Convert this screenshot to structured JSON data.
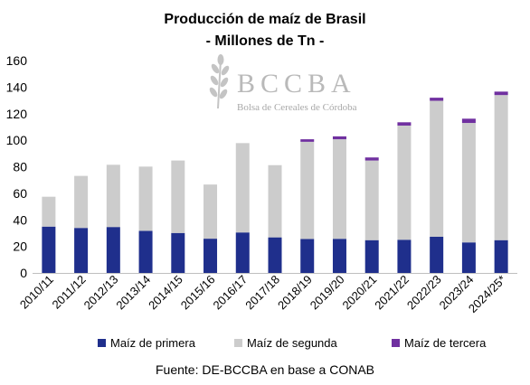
{
  "chart_data": {
    "type": "bar",
    "stacked": true,
    "title": "Producción de maíz de Brasil",
    "subtitle": "- Millones de Tn -",
    "categories": [
      "2010/11",
      "2011/12",
      "2012/13",
      "2013/14",
      "2014/15",
      "2015/16",
      "2016/17",
      "2017/18",
      "2018/19",
      "2019/20",
      "2020/21",
      "2021/22",
      "2022/23",
      "2023/24",
      "2024/25*"
    ],
    "series": [
      {
        "name": "Maíz de primera",
        "color": "#1f2f8c",
        "values": [
          34.9,
          33.9,
          34.6,
          31.7,
          30.1,
          25.8,
          30.5,
          26.8,
          25.6,
          25.7,
          24.7,
          25.0,
          27.3,
          23.0,
          24.7
        ]
      },
      {
        "name": "Maíz de segunda",
        "color": "#cccccc",
        "values": [
          22.5,
          39.2,
          46.9,
          48.4,
          54.6,
          40.8,
          67.3,
          54.4,
          73.2,
          75.0,
          60.0,
          86.0,
          102.4,
          90.0,
          109.3
        ]
      },
      {
        "name": "Maíz de tercera",
        "color": "#7030a0",
        "values": [
          0,
          0,
          0,
          0,
          0,
          0,
          0,
          0,
          1.9,
          2.2,
          2.3,
          2.5,
          2.3,
          3.2,
          2.6
        ]
      }
    ],
    "ylim": [
      0,
      160
    ],
    "yticks": [
      "0",
      "20",
      "40",
      "60",
      "80",
      "100",
      "120",
      "140",
      "160"
    ],
    "grid": false,
    "legend_position": "bottom"
  },
  "watermark": {
    "brand": "BCCBA",
    "tagline": "Bolsa de Cereales de Córdoba"
  },
  "source_note": "Fuente: DE-BCCBA en base a CONAB"
}
